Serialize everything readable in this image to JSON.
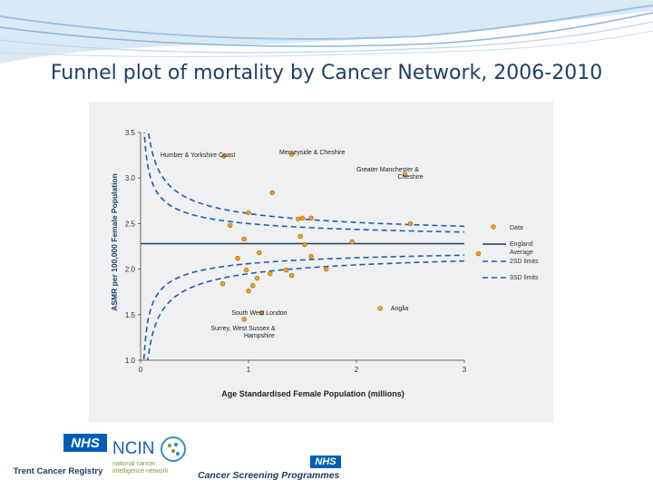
{
  "title": "Funnel plot of mortality by Cancer Network, 2006-2010",
  "colors": {
    "title": "#1f3f66",
    "curve": "#1f5fae",
    "point_fill": "#f0a020",
    "point_stroke": "#b06000",
    "nhs_blue": "#005eb8"
  },
  "chart_data": {
    "type": "scatter",
    "xlabel": "Age Standardised Female Population (millions)",
    "ylabel": "ASMR per 100,000 Female Population",
    "xlim": [
      0,
      3
    ],
    "ylim": [
      1.0,
      3.5
    ],
    "x_ticks": [
      "0",
      "1",
      "2",
      "3"
    ],
    "y_ticks": [
      "1.0",
      "1.5",
      "2.0",
      "2.5",
      "3.0",
      "3.5"
    ],
    "england_average": 2.28,
    "series": [
      {
        "name": "Data",
        "points": [
          [
            0.77,
            3.24
          ],
          [
            1.4,
            3.26
          ],
          [
            2.45,
            3.04
          ],
          [
            1.22,
            2.84
          ],
          [
            1.0,
            2.62
          ],
          [
            0.83,
            2.48
          ],
          [
            1.5,
            2.56
          ],
          [
            1.46,
            2.55
          ],
          [
            1.58,
            2.56
          ],
          [
            2.5,
            2.5
          ],
          [
            1.48,
            2.36
          ],
          [
            0.96,
            2.33
          ],
          [
            1.96,
            2.3
          ],
          [
            1.1,
            2.18
          ],
          [
            1.52,
            2.27
          ],
          [
            1.58,
            2.14
          ],
          [
            0.9,
            2.12
          ],
          [
            1.72,
            2.0
          ],
          [
            1.35,
            1.99
          ],
          [
            0.98,
            1.99
          ],
          [
            1.2,
            1.95
          ],
          [
            1.4,
            1.93
          ],
          [
            0.76,
            1.84
          ],
          [
            1.08,
            1.9
          ],
          [
            3.13,
            2.17
          ],
          [
            1.04,
            1.82
          ],
          [
            1.0,
            1.76
          ],
          [
            1.12,
            1.52
          ],
          [
            2.22,
            1.57
          ],
          [
            0.96,
            1.45
          ]
        ]
      },
      {
        "name": "England Average"
      },
      {
        "name": "2SD limits"
      },
      {
        "name": "3SD limits"
      }
    ],
    "annotations": [
      {
        "text": "Humber & Yorkshire Coast",
        "x": 0.53,
        "y": 3.23
      },
      {
        "text": "Merseyside & Cheshire",
        "x": 1.59,
        "y": 3.26
      },
      {
        "text": "Greater Manchester &",
        "x": 2.29,
        "y": 3.07
      },
      {
        "text": "Cheshire",
        "x": 2.5,
        "y": 2.99
      },
      {
        "text": "Anglia",
        "x": 2.4,
        "y": 1.55
      },
      {
        "text": "South West London",
        "x": 1.1,
        "y": 1.5
      },
      {
        "text": "Surrey, West Sussex &",
        "x": 0.95,
        "y": 1.33
      },
      {
        "text": "Hampshire",
        "x": 1.1,
        "y": 1.25
      }
    ],
    "legend_position": "right"
  },
  "logos": {
    "trent": {
      "nhs": "NHS",
      "name": "Trent Cancer Registry"
    },
    "ncin": {
      "acronym": "NCIN",
      "line1": "national cancer",
      "line2": "intelligence network"
    },
    "screening": {
      "nhs": "NHS",
      "name": "Cancer Screening Programmes"
    }
  }
}
